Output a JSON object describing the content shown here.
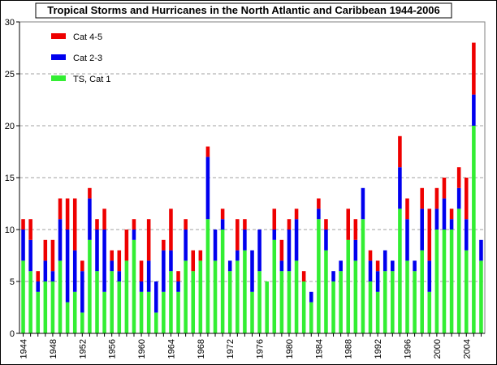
{
  "chart_data": {
    "type": "bar",
    "stacked": true,
    "title": "Tropical Storms and Hurricanes in the North Atlantic and Caribbean 1944-2006",
    "xlabel": "",
    "ylabel": "",
    "ylim": [
      0,
      30
    ],
    "yticks": [
      0,
      5,
      10,
      15,
      20,
      25,
      30
    ],
    "grid": "horizontal dashed",
    "legend_position": "top-left",
    "x_tick_labels": [
      "1944",
      "1948",
      "1952",
      "1956",
      "1960",
      "1964",
      "1968",
      "1972",
      "1976",
      "1980",
      "1984",
      "1988",
      "1992",
      "1996",
      "2000",
      "2004"
    ],
    "categories": [
      1944,
      1945,
      1946,
      1947,
      1948,
      1949,
      1950,
      1951,
      1952,
      1953,
      1954,
      1955,
      1956,
      1957,
      1958,
      1959,
      1960,
      1961,
      1962,
      1963,
      1964,
      1965,
      1966,
      1967,
      1968,
      1969,
      1970,
      1971,
      1972,
      1973,
      1974,
      1975,
      1976,
      1977,
      1978,
      1979,
      1980,
      1981,
      1982,
      1983,
      1984,
      1985,
      1986,
      1987,
      1988,
      1989,
      1990,
      1991,
      1992,
      1993,
      1994,
      1995,
      1996,
      1997,
      1998,
      1999,
      2000,
      2001,
      2002,
      2003,
      2004,
      2005,
      2006
    ],
    "series": [
      {
        "name": "TS, Cat 1",
        "color": "#33ee33",
        "values": [
          7,
          6,
          4,
          5,
          5,
          7,
          3,
          4,
          2,
          9,
          6,
          4,
          6,
          5,
          7,
          9,
          4,
          4,
          2,
          4,
          6,
          4,
          7,
          6,
          7,
          11,
          7,
          10,
          6,
          7,
          8,
          4,
          6,
          5,
          9,
          6,
          6,
          7,
          5,
          3,
          11,
          8,
          5,
          6,
          9,
          7,
          11,
          5,
          4,
          6,
          6,
          12,
          7,
          6,
          8,
          4,
          10,
          10,
          10,
          12,
          8,
          20,
          7
        ]
      },
      {
        "name": "Cat 2-3",
        "color": "#0000ee",
        "values": [
          3,
          3,
          1,
          2,
          1,
          4,
          7,
          4,
          4,
          4,
          4,
          6,
          1,
          1,
          0,
          1,
          1,
          3,
          3,
          4,
          2,
          1,
          3,
          0,
          0,
          6,
          3,
          1,
          1,
          1,
          2,
          4,
          4,
          0,
          1,
          1,
          4,
          4,
          0,
          1,
          1,
          2,
          1,
          1,
          0,
          2,
          3,
          2,
          2,
          2,
          1,
          4,
          4,
          1,
          4,
          3,
          2,
          3,
          1,
          2,
          3,
          3,
          2
        ]
      },
      {
        "name": "Cat 4-5",
        "color": "#ee0000",
        "values": [
          1,
          2,
          1,
          2,
          3,
          2,
          3,
          5,
          1,
          1,
          1,
          2,
          1,
          2,
          3,
          1,
          2,
          4,
          0,
          1,
          4,
          1,
          1,
          2,
          1,
          1,
          0,
          1,
          0,
          3,
          1,
          0,
          0,
          0,
          2,
          2,
          1,
          1,
          1,
          0,
          1,
          1,
          0,
          0,
          3,
          2,
          0,
          1,
          1,
          0,
          0,
          3,
          2,
          0,
          2,
          5,
          2,
          2,
          1,
          2,
          4,
          5,
          0
        ]
      }
    ]
  }
}
